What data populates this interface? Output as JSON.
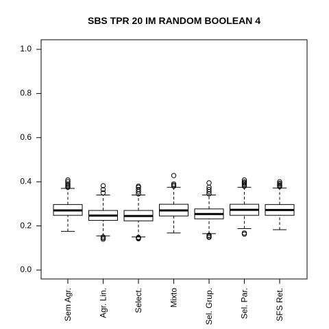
{
  "chart_data": {
    "type": "box",
    "title": "SBS TPR 20 IM RANDOM BOOLEAN 4",
    "xlabel": "",
    "ylabel": "",
    "ylim": [
      0.0,
      1.0
    ],
    "yticks": [
      0.0,
      0.2,
      0.4,
      0.6,
      0.8,
      1.0
    ],
    "ytick_labels": [
      "0.0",
      "0.2",
      "0.4",
      "0.6",
      "0.8",
      "1.0"
    ],
    "grid": false,
    "categories": [
      "Sem Agr.",
      "Agr. Lin.",
      "Select.",
      "Mixto",
      "Sel. Grup.",
      "Sel. Par.",
      "SFS Ret."
    ],
    "boxes": [
      {
        "whisker_low": 0.175,
        "q1": 0.248,
        "median": 0.27,
        "q3": 0.297,
        "whisker_high": 0.37,
        "outliers": [
          0.375,
          0.38,
          0.385,
          0.39,
          0.4,
          0.408
        ]
      },
      {
        "whisker_low": 0.155,
        "q1": 0.225,
        "median": 0.247,
        "q3": 0.27,
        "whisker_high": 0.34,
        "outliers": [
          0.14,
          0.145,
          0.15,
          0.35,
          0.365,
          0.382
        ]
      },
      {
        "whisker_low": 0.15,
        "q1": 0.223,
        "median": 0.245,
        "q3": 0.27,
        "whisker_high": 0.34,
        "outliers": [
          0.142,
          0.145,
          0.148,
          0.345,
          0.355,
          0.365,
          0.375,
          0.38
        ]
      },
      {
        "whisker_low": 0.168,
        "q1": 0.245,
        "median": 0.27,
        "q3": 0.298,
        "whisker_high": 0.375,
        "outliers": [
          0.38,
          0.385,
          0.39,
          0.428
        ]
      },
      {
        "whisker_low": 0.165,
        "q1": 0.232,
        "median": 0.254,
        "q3": 0.277,
        "whisker_high": 0.34,
        "outliers": [
          0.148,
          0.153,
          0.158,
          0.345,
          0.355,
          0.365,
          0.375,
          0.395
        ]
      },
      {
        "whisker_low": 0.188,
        "q1": 0.248,
        "median": 0.273,
        "q3": 0.298,
        "whisker_high": 0.375,
        "outliers": [
          0.163,
          0.168,
          0.38,
          0.385,
          0.39,
          0.395,
          0.4,
          0.408
        ]
      },
      {
        "whisker_low": 0.183,
        "q1": 0.248,
        "median": 0.272,
        "q3": 0.297,
        "whisker_high": 0.372,
        "outliers": [
          0.378,
          0.383,
          0.388,
          0.393,
          0.4
        ]
      }
    ]
  }
}
